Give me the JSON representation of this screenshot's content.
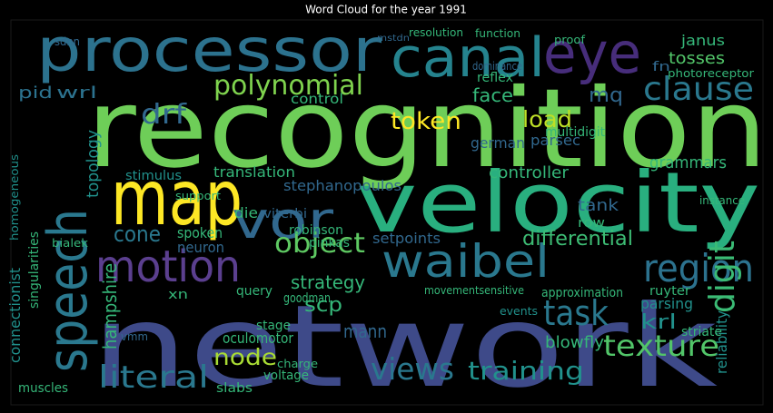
{
  "title": "Word Cloud for the year 1991",
  "words": [
    "recognition",
    "network",
    "processor",
    "canal",
    "eye",
    "map",
    "velocity",
    "vor",
    "speech",
    "motion",
    "waibel",
    "region",
    "polynomial",
    "clause",
    "token",
    "drf",
    "load",
    "digit",
    "texture",
    "literal",
    "views",
    "training",
    "task",
    "object",
    "node",
    "differential",
    "cone",
    "strategy",
    "hampshire",
    "connectionist",
    "setpoints",
    "neuron",
    "spoken",
    "scp",
    "goodman",
    "mann",
    "krl",
    "parsing",
    "ruyter",
    "reliability",
    "grammars",
    "controller",
    "tank",
    "parsec",
    "stephanopoulos",
    "translation",
    "topology",
    "stimulus",
    "control",
    "face",
    "mq",
    "wrl",
    "pid",
    "tosses",
    "janus",
    "fn",
    "photoreceptor",
    "resolution",
    "function",
    "proof",
    "blowfly",
    "die",
    "viterbi",
    "robinson",
    "pinkas",
    "query",
    "oculomotor",
    "stage",
    "voltage",
    "charge",
    "slabs",
    "muscles",
    "homogeneous",
    "singularities",
    "approximation",
    "row",
    "events",
    "striate",
    "movementsensitive",
    "instance",
    "german",
    "multidigit",
    "dominance",
    "reflex",
    "sdnn",
    "support",
    "xn",
    "vmm",
    "bialek",
    "mstdn"
  ]
}
